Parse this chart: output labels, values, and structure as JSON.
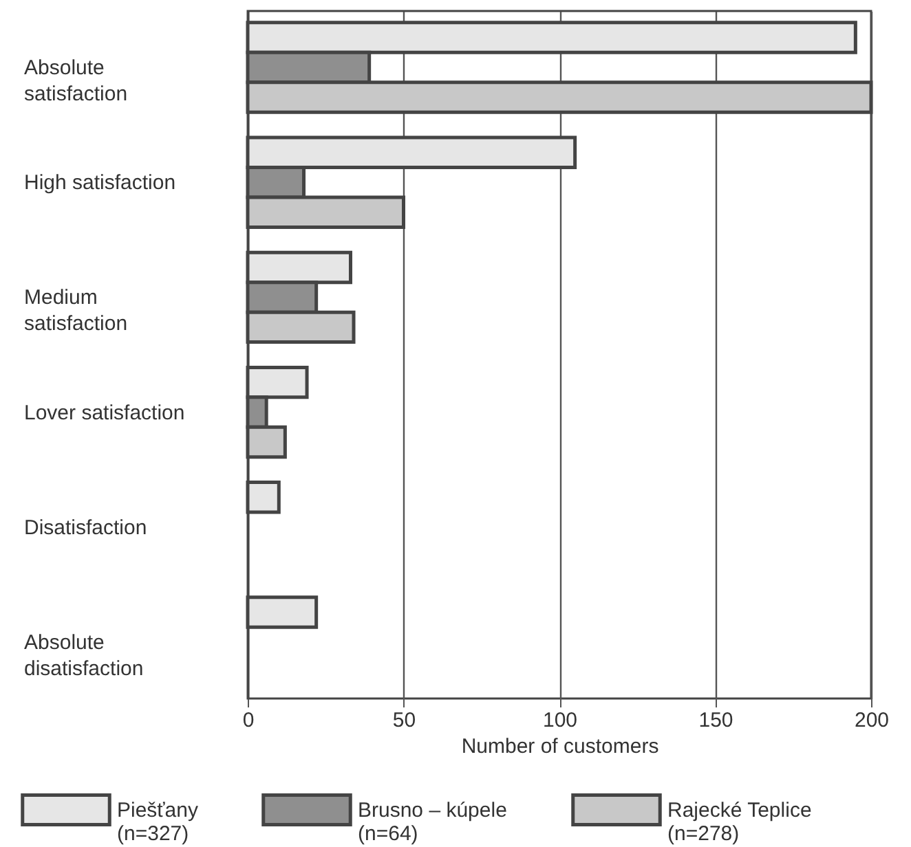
{
  "chart_data": {
    "type": "bar",
    "orientation": "horizontal",
    "xlabel": "Number of customers",
    "categories": [
      "Absolute satisfaction",
      "High satisfaction",
      "Medium satisfaction",
      "Lover satisfaction",
      "Disatisfaction",
      "Absolute disatisfaction"
    ],
    "series": [
      {
        "name": "Piešťany (n=327)",
        "color": "#e6e6e6",
        "values": [
          195,
          105,
          33,
          19,
          10,
          22
        ]
      },
      {
        "name": "Brusno – kúpele (n=64)",
        "color": "#8f8f8f",
        "values": [
          39,
          18,
          22,
          6,
          null,
          null
        ]
      },
      {
        "name": "Rajecké Teplice (n=278)",
        "color": "#c8c8c8",
        "values": [
          200,
          50,
          34,
          12,
          null,
          null
        ]
      }
    ],
    "xlim": [
      0,
      200
    ],
    "xticks": [
      0,
      50,
      100,
      150,
      200
    ],
    "grid": "x",
    "legend": "bottom"
  }
}
